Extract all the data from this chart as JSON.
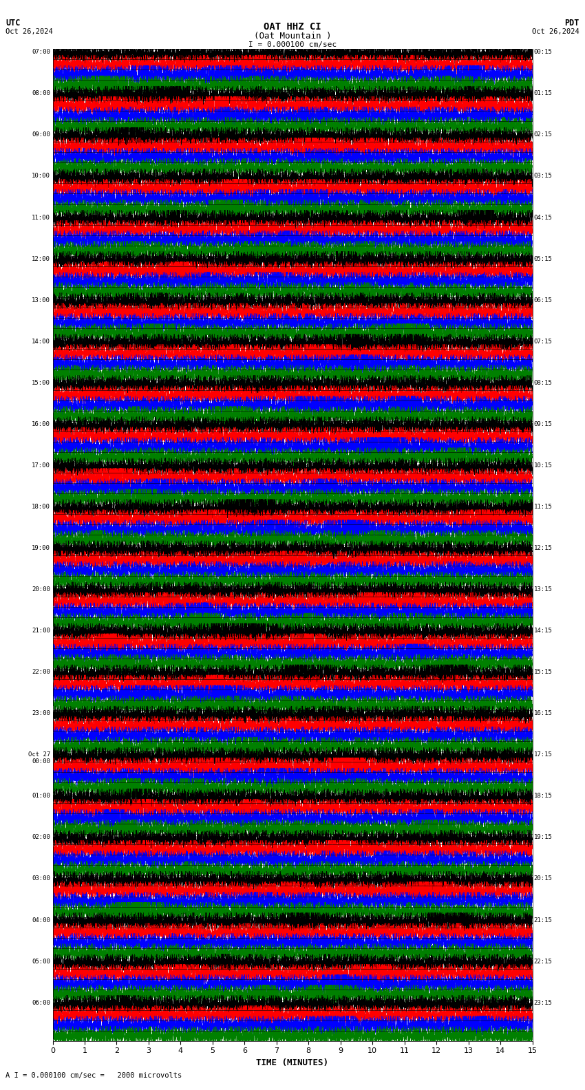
{
  "title_line1": "OAT HHZ CI",
  "title_line2": "(Oat Mountain )",
  "scale_text": "I = 0.000100 cm/sec",
  "utc_label": "UTC",
  "pdt_label": "PDT",
  "date_left": "Oct 26,2024",
  "date_right": "Oct 26,2024",
  "xlabel": "TIME (MINUTES)",
  "footer_text": "A I = 0.000100 cm/sec =   2000 microvolts",
  "bg_color": "#ffffff",
  "trace_colors": [
    "#000000",
    "#ff0000",
    "#0000ff",
    "#008000"
  ],
  "xmin": 0,
  "xmax": 15,
  "xticks": [
    0,
    1,
    2,
    3,
    4,
    5,
    6,
    7,
    8,
    9,
    10,
    11,
    12,
    13,
    14,
    15
  ],
  "utc_times_left": [
    "07:00",
    "08:00",
    "09:00",
    "10:00",
    "11:00",
    "12:00",
    "13:00",
    "14:00",
    "15:00",
    "16:00",
    "17:00",
    "18:00",
    "19:00",
    "20:00",
    "21:00",
    "22:00",
    "23:00",
    "Oct 27\n00:00",
    "01:00",
    "02:00",
    "03:00",
    "04:00",
    "05:00",
    "06:00"
  ],
  "pdt_times_right": [
    "00:15",
    "01:15",
    "02:15",
    "03:15",
    "04:15",
    "05:15",
    "06:15",
    "07:15",
    "08:15",
    "09:15",
    "10:15",
    "11:15",
    "12:15",
    "13:15",
    "14:15",
    "15:15",
    "16:15",
    "17:15",
    "18:15",
    "19:15",
    "20:15",
    "21:15",
    "22:15",
    "23:15"
  ],
  "traces_per_hour": 4,
  "total_hours": 24,
  "amplitude": 0.42,
  "seed": 42
}
